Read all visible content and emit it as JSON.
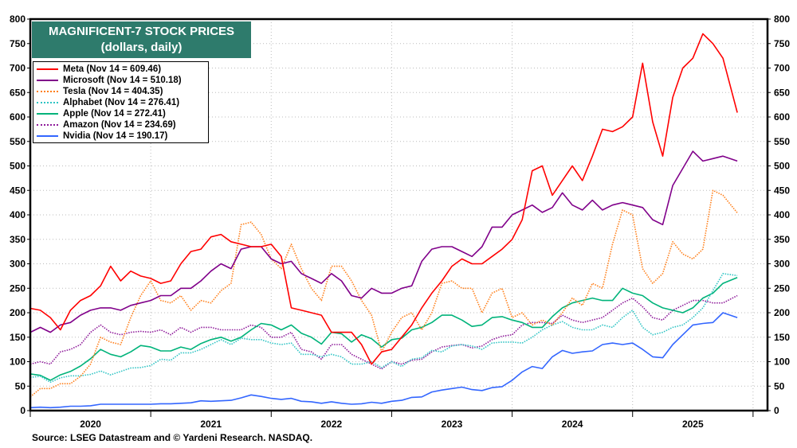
{
  "chart_data": {
    "type": "line",
    "title": "MAGNIFICENT-7 STOCK PRICES",
    "subtitle": "(dollars, daily)",
    "source": "Source: LSEG Datastream and © Yardeni Research. NASDAQ.",
    "x_start_month": "2020-01",
    "x_last_date": "2025-11-14",
    "x_frequency": "monthly",
    "xlim": [
      "2020-01-01",
      "2026-02-01"
    ],
    "x_tick_labels": [
      "2020",
      "2021",
      "2022",
      "2023",
      "2024",
      "2025"
    ],
    "ylim": [
      0,
      800
    ],
    "y_ticks": [
      0,
      50,
      100,
      150,
      200,
      250,
      300,
      350,
      400,
      450,
      500,
      550,
      600,
      650,
      700,
      750,
      800
    ],
    "y_axes": [
      "left",
      "right"
    ],
    "grid": true,
    "legend_placement": "top-left",
    "series": [
      {
        "name": "Meta (Nov 14 = 609.46)",
        "color": "#ff0000",
        "style": "solid",
        "values": [
          209,
          205,
          190,
          165,
          205,
          225,
          235,
          255,
          295,
          265,
          285,
          275,
          270,
          260,
          265,
          300,
          325,
          330,
          355,
          360,
          345,
          340,
          335,
          335,
          340,
          315,
          210,
          205,
          200,
          195,
          160,
          160,
          160,
          135,
          95,
          120,
          125,
          150,
          175,
          210,
          240,
          265,
          295,
          310,
          300,
          300,
          315,
          330,
          350,
          390,
          490,
          500,
          440,
          470,
          500,
          470,
          520,
          575,
          570,
          580,
          600,
          710,
          590,
          520,
          640,
          700,
          720,
          770,
          750,
          720,
          609
        ]
      },
      {
        "name": "Microsoft (Nov 14 = 510.18)",
        "color": "#80008a",
        "style": "solid",
        "values": [
          160,
          170,
          160,
          175,
          180,
          195,
          205,
          210,
          210,
          205,
          215,
          220,
          225,
          235,
          235,
          250,
          250,
          265,
          285,
          300,
          290,
          330,
          335,
          335,
          310,
          300,
          305,
          280,
          270,
          260,
          280,
          265,
          235,
          230,
          250,
          240,
          240,
          250,
          255,
          305,
          330,
          335,
          335,
          325,
          315,
          335,
          375,
          375,
          400,
          410,
          420,
          405,
          415,
          445,
          420,
          410,
          430,
          410,
          420,
          425,
          420,
          415,
          390,
          380,
          460,
          495,
          530,
          510,
          515,
          520,
          510
        ]
      },
      {
        "name": "Tesla (Nov 14 = 404.35)",
        "color": "#ff7f1a",
        "style": "dotted",
        "values": [
          28,
          45,
          45,
          55,
          55,
          70,
          95,
          150,
          140,
          135,
          190,
          235,
          265,
          225,
          220,
          235,
          205,
          225,
          220,
          245,
          260,
          380,
          385,
          360,
          310,
          290,
          340,
          290,
          250,
          225,
          295,
          295,
          265,
          225,
          195,
          120,
          160,
          190,
          200,
          165,
          200,
          260,
          265,
          250,
          250,
          200,
          240,
          250,
          190,
          200,
          175,
          185,
          175,
          200,
          230,
          215,
          260,
          250,
          340,
          410,
          400,
          290,
          260,
          280,
          345,
          320,
          310,
          330,
          450,
          440,
          404
        ]
      },
      {
        "name": "Alphabet (Nov 14 = 276.41)",
        "color": "#2ec4c4",
        "style": "dotted",
        "values": [
          68,
          70,
          58,
          67,
          71,
          71,
          74,
          81,
          73,
          80,
          87,
          88,
          92,
          105,
          103,
          118,
          118,
          125,
          135,
          145,
          135,
          148,
          145,
          145,
          138,
          135,
          138,
          115,
          115,
          110,
          115,
          110,
          95,
          95,
          100,
          88,
          100,
          90,
          105,
          108,
          123,
          120,
          132,
          135,
          132,
          125,
          138,
          140,
          140,
          138,
          150,
          165,
          175,
          182,
          170,
          165,
          165,
          175,
          170,
          190,
          205,
          170,
          155,
          160,
          170,
          175,
          190,
          210,
          245,
          280,
          276
        ]
      },
      {
        "name": "Apple (Nov 14 = 272.41)",
        "color": "#00b37a",
        "style": "solid",
        "values": [
          75,
          72,
          62,
          73,
          80,
          91,
          106,
          125,
          115,
          110,
          120,
          133,
          130,
          122,
          122,
          130,
          125,
          137,
          145,
          150,
          142,
          150,
          165,
          178,
          175,
          165,
          175,
          158,
          150,
          136,
          160,
          157,
          140,
          155,
          147,
          130,
          145,
          148,
          165,
          170,
          180,
          195,
          195,
          185,
          172,
          175,
          190,
          192,
          185,
          180,
          170,
          170,
          192,
          210,
          220,
          225,
          230,
          225,
          225,
          250,
          240,
          235,
          220,
          210,
          205,
          200,
          210,
          230,
          240,
          260,
          272
        ]
      },
      {
        "name": "Amazon (Nov 14 = 234.69)",
        "color": "#8e1a9a",
        "style": "dotted",
        "values": [
          95,
          100,
          95,
          120,
          125,
          135,
          160,
          175,
          160,
          155,
          160,
          162,
          160,
          165,
          155,
          170,
          160,
          170,
          170,
          165,
          165,
          165,
          175,
          170,
          150,
          150,
          160,
          125,
          120,
          105,
          135,
          135,
          115,
          105,
          95,
          85,
          100,
          95,
          103,
          105,
          120,
          130,
          133,
          135,
          128,
          132,
          145,
          152,
          155,
          175,
          180,
          180,
          178,
          195,
          185,
          180,
          185,
          190,
          205,
          220,
          230,
          212,
          190,
          185,
          205,
          215,
          225,
          225,
          220,
          220,
          235
        ]
      },
      {
        "name": "Nvidia (Nov 14 = 190.17)",
        "color": "#3366ff",
        "style": "solid",
        "values": [
          6,
          7,
          6,
          7,
          9,
          9,
          10,
          13,
          13,
          13,
          13,
          13,
          13,
          14,
          14,
          15,
          16,
          20,
          19,
          20,
          21,
          26,
          32,
          29,
          25,
          23,
          25,
          19,
          18,
          15,
          18,
          15,
          13,
          14,
          17,
          15,
          19,
          21,
          27,
          28,
          38,
          42,
          45,
          48,
          43,
          41,
          47,
          49,
          62,
          79,
          90,
          86,
          110,
          123,
          117,
          120,
          122,
          135,
          138,
          135,
          138,
          125,
          110,
          108,
          135,
          155,
          175,
          178,
          180,
          200,
          190
        ]
      }
    ]
  }
}
